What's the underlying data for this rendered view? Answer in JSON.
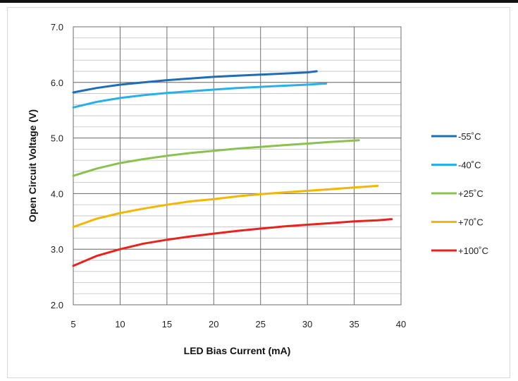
{
  "chart_data": {
    "type": "line",
    "title": "",
    "xlabel": "LED Bias Current (mA)",
    "ylabel": "Open Circuit Voltage (V)",
    "xlim": [
      5,
      40
    ],
    "ylim": [
      2.0,
      7.0
    ],
    "x_ticks": [
      "5",
      "10",
      "15",
      "20",
      "25",
      "30",
      "35",
      "40"
    ],
    "y_ticks": [
      "2.0",
      "3.0",
      "4.0",
      "5.0",
      "6.0",
      "7.0"
    ],
    "grid": true,
    "legend_position": "right",
    "series": [
      {
        "name": "-55˚C",
        "color": "#1f6eb5",
        "points": [
          [
            5,
            5.82
          ],
          [
            7.5,
            5.9
          ],
          [
            10,
            5.96
          ],
          [
            12.5,
            6.0
          ],
          [
            15,
            6.04
          ],
          [
            17.5,
            6.07
          ],
          [
            20,
            6.1
          ],
          [
            22.5,
            6.12
          ],
          [
            25,
            6.14
          ],
          [
            27.5,
            6.16
          ],
          [
            30,
            6.18
          ],
          [
            31,
            6.2
          ]
        ]
      },
      {
        "name": "-40˚C",
        "color": "#2ab0e8",
        "points": [
          [
            5,
            5.55
          ],
          [
            7.5,
            5.65
          ],
          [
            10,
            5.72
          ],
          [
            12.5,
            5.77
          ],
          [
            15,
            5.81
          ],
          [
            17.5,
            5.84
          ],
          [
            20,
            5.87
          ],
          [
            22.5,
            5.9
          ],
          [
            25,
            5.92
          ],
          [
            27.5,
            5.94
          ],
          [
            30,
            5.96
          ],
          [
            32,
            5.98
          ]
        ]
      },
      {
        "name": "+25˚C",
        "color": "#8cc152",
        "points": [
          [
            5,
            4.32
          ],
          [
            7.5,
            4.45
          ],
          [
            10,
            4.55
          ],
          [
            12.5,
            4.62
          ],
          [
            15,
            4.68
          ],
          [
            17.5,
            4.73
          ],
          [
            20,
            4.77
          ],
          [
            22.5,
            4.81
          ],
          [
            25,
            4.84
          ],
          [
            27.5,
            4.87
          ],
          [
            30,
            4.9
          ],
          [
            32.5,
            4.93
          ],
          [
            35.5,
            4.96
          ]
        ]
      },
      {
        "name": "+70˚C",
        "color": "#f2b705",
        "points": [
          [
            5,
            3.4
          ],
          [
            7.5,
            3.55
          ],
          [
            10,
            3.65
          ],
          [
            12.5,
            3.73
          ],
          [
            15,
            3.8
          ],
          [
            17.5,
            3.86
          ],
          [
            20,
            3.9
          ],
          [
            22.5,
            3.95
          ],
          [
            25,
            3.99
          ],
          [
            27.5,
            4.02
          ],
          [
            30,
            4.05
          ],
          [
            32.5,
            4.08
          ],
          [
            35,
            4.11
          ],
          [
            37.5,
            4.14
          ]
        ]
      },
      {
        "name": "+100˚C",
        "color": "#e8231c",
        "points": [
          [
            5,
            2.7
          ],
          [
            7.5,
            2.88
          ],
          [
            10,
            3.0
          ],
          [
            12.5,
            3.1
          ],
          [
            15,
            3.17
          ],
          [
            17.5,
            3.23
          ],
          [
            20,
            3.28
          ],
          [
            22.5,
            3.33
          ],
          [
            25,
            3.37
          ],
          [
            27.5,
            3.41
          ],
          [
            30,
            3.44
          ],
          [
            32.5,
            3.47
          ],
          [
            35,
            3.5
          ],
          [
            37.5,
            3.52
          ],
          [
            39,
            3.54
          ]
        ]
      }
    ]
  }
}
